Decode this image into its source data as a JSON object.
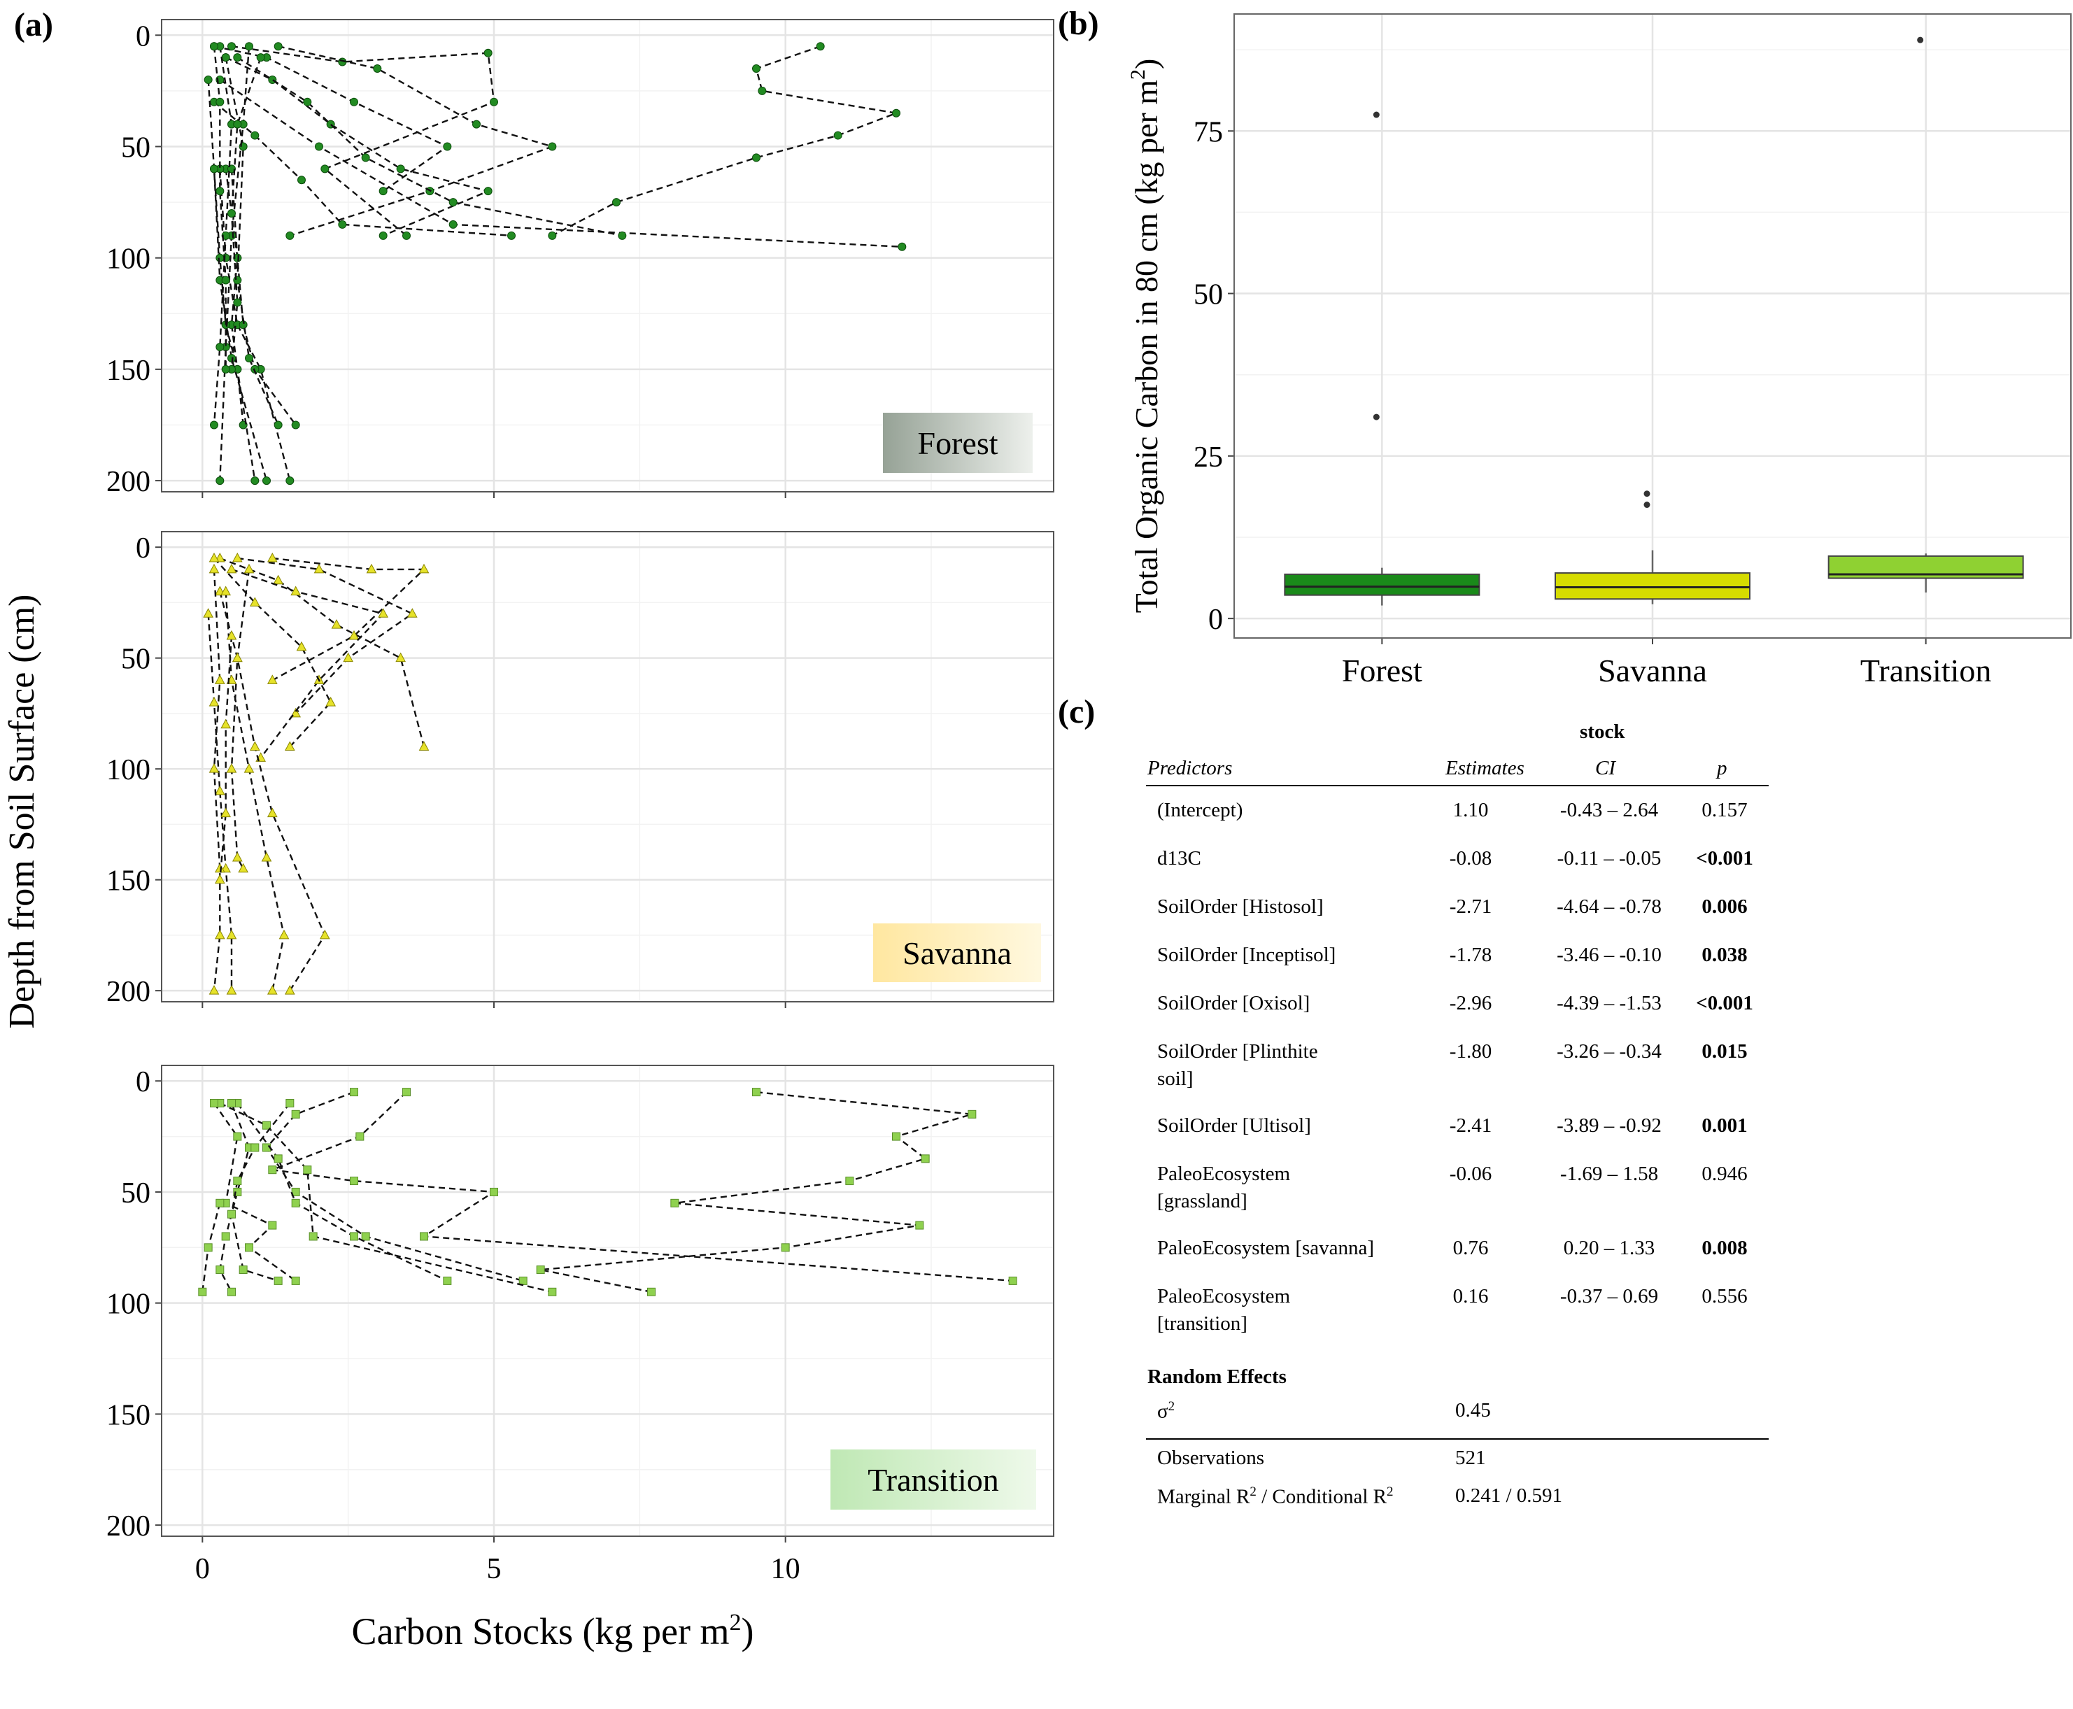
{
  "panel_labels": {
    "a": "(a)",
    "b": "(b)",
    "c": "(c)"
  },
  "colors": {
    "forest": "#1a8a1a",
    "savanna": "#d6dc00",
    "transition": "#8fd132",
    "forest_point": "#228b22",
    "savanna_point": "#e6e22a",
    "transition_point": "#8fd14f",
    "forest_label_bg": "#a9b3a9",
    "savanna_label_bg": "#ffe9a6",
    "transition_label_bg": "#c9ecc0"
  },
  "chart_data": [
    {
      "type": "line",
      "panel": "a",
      "facet": "Forest",
      "ylabel": "Depth from Soil Surface (cm)",
      "xlabel": "Carbon Stocks (kg per m2)",
      "xlim": [
        -0.7,
        14.6
      ],
      "ylim": [
        205,
        -7
      ],
      "y_reversed": true,
      "xticks": [
        0,
        5,
        10
      ],
      "yticks": [
        0,
        50,
        100,
        150,
        200
      ],
      "grid": true,
      "series": [
        {
          "x": [
            0.2,
            1.1,
            2.6,
            4.2,
            3.1
          ],
          "y": [
            5,
            10,
            30,
            50,
            70
          ]
        },
        {
          "x": [
            0.5,
            2.4,
            4.9,
            5.0,
            2.1,
            3.5
          ],
          "y": [
            5,
            12,
            8,
            30,
            60,
            90
          ]
        },
        {
          "x": [
            1.3,
            3.0,
            4.7,
            6.0,
            3.9,
            1.5
          ],
          "y": [
            5,
            15,
            40,
            50,
            70,
            90
          ]
        },
        {
          "x": [
            10.6,
            9.5,
            9.6,
            11.9,
            10.9,
            9.5,
            7.1,
            6.0
          ],
          "y": [
            5,
            15,
            25,
            35,
            45,
            55,
            75,
            90
          ]
        },
        {
          "x": [
            0.4,
            1.2,
            2.2,
            3.4,
            4.9,
            3.1
          ],
          "y": [
            10,
            20,
            40,
            60,
            70,
            90
          ]
        },
        {
          "x": [
            0.3,
            2.0,
            4.3,
            12.0
          ],
          "y": [
            20,
            50,
            85,
            95
          ]
        },
        {
          "x": [
            0.6,
            1.8,
            2.8,
            4.3,
            7.2
          ],
          "y": [
            10,
            30,
            55,
            75,
            90
          ]
        },
        {
          "x": [
            0.2,
            0.9,
            1.7,
            2.4,
            5.3
          ],
          "y": [
            30,
            45,
            65,
            85,
            90
          ]
        },
        {
          "x": [
            0.4,
            0.6,
            0.5,
            0.6,
            0.7
          ],
          "y": [
            60,
            100,
            130,
            150,
            175
          ]
        },
        {
          "x": [
            0.3,
            0.4,
            0.6,
            1.0,
            1.5
          ],
          "y": [
            60,
            100,
            130,
            150,
            200
          ]
        },
        {
          "x": [
            0.2,
            0.3,
            0.4,
            0.6,
            0.9
          ],
          "y": [
            60,
            100,
            130,
            150,
            200
          ]
        },
        {
          "x": [
            0.5,
            0.6,
            0.7,
            0.9,
            1.6
          ],
          "y": [
            60,
            100,
            130,
            150,
            175
          ]
        },
        {
          "x": [
            0.1,
            0.2,
            0.3,
            0.5,
            1.1
          ],
          "y": [
            20,
            60,
            110,
            145,
            200
          ]
        },
        {
          "x": [
            0.4,
            0.7,
            0.6,
            0.8,
            1.3
          ],
          "y": [
            10,
            50,
            110,
            145,
            175
          ]
        },
        {
          "x": [
            0.8,
            0.7,
            0.5,
            0.4,
            0.3
          ],
          "y": [
            5,
            40,
            90,
            140,
            200
          ]
        },
        {
          "x": [
            0.3,
            0.5,
            0.4,
            0.3,
            0.2
          ],
          "y": [
            5,
            40,
            90,
            140,
            175
          ]
        },
        {
          "x": [
            1.0,
            0.6,
            0.5,
            0.6,
            0.5
          ],
          "y": [
            10,
            40,
            80,
            120,
            150
          ]
        },
        {
          "x": [
            0.2,
            0.3,
            0.3,
            0.4,
            0.4
          ],
          "y": [
            5,
            30,
            70,
            110,
            150
          ]
        }
      ]
    },
    {
      "type": "line",
      "panel": "a",
      "facet": "Savanna",
      "xlim": [
        -0.7,
        14.6
      ],
      "ylim": [
        205,
        -7
      ],
      "y_reversed": true,
      "xticks": [
        0,
        5,
        10
      ],
      "yticks": [
        0,
        50,
        100,
        150,
        200
      ],
      "grid": true,
      "series": [
        {
          "x": [
            0.3,
            1.3,
            2.3,
            3.4,
            3.8
          ],
          "y": [
            5,
            15,
            35,
            50,
            90
          ]
        },
        {
          "x": [
            0.6,
            2.0,
            3.6,
            2.5,
            1.6
          ],
          "y": [
            5,
            10,
            30,
            50,
            75
          ]
        },
        {
          "x": [
            1.2,
            2.9,
            3.8,
            2.6,
            1.2
          ],
          "y": [
            5,
            10,
            10,
            40,
            60
          ]
        },
        {
          "x": [
            0.5,
            1.6,
            3.1,
            2.0,
            1.0
          ],
          "y": [
            10,
            20,
            30,
            60,
            95
          ]
        },
        {
          "x": [
            0.2,
            0.9,
            1.7,
            2.2,
            1.5
          ],
          "y": [
            5,
            25,
            45,
            70,
            90
          ]
        },
        {
          "x": [
            0.3,
            0.6,
            0.9,
            1.2,
            2.1,
            1.5
          ],
          "y": [
            20,
            50,
            90,
            120,
            175,
            200
          ]
        },
        {
          "x": [
            0.4,
            0.5,
            0.8,
            1.1,
            1.4,
            1.2
          ],
          "y": [
            20,
            60,
            100,
            140,
            175,
            200
          ]
        },
        {
          "x": [
            0.1,
            0.2,
            0.3,
            0.4,
            0.5,
            0.5
          ],
          "y": [
            30,
            70,
            110,
            145,
            175,
            200
          ]
        },
        {
          "x": [
            0.2,
            0.3,
            0.2,
            0.3,
            0.3,
            0.2
          ],
          "y": [
            10,
            60,
            100,
            145,
            175,
            200
          ]
        },
        {
          "x": [
            0.8,
            0.6,
            0.5,
            0.6,
            0.7
          ],
          "y": [
            10,
            50,
            100,
            140,
            145
          ]
        },
        {
          "x": [
            0.5,
            0.4,
            0.4,
            0.3
          ],
          "y": [
            40,
            80,
            120,
            150
          ]
        }
      ]
    },
    {
      "type": "line",
      "panel": "a",
      "facet": "Transition",
      "xlim": [
        -0.7,
        14.6
      ],
      "ylim": [
        205,
        -7
      ],
      "y_reversed": true,
      "xticks": [
        0,
        5,
        10
      ],
      "yticks": [
        0,
        50,
        100,
        150,
        200
      ],
      "grid": true,
      "series": [
        {
          "x": [
            9.5,
            13.2,
            11.9,
            12.4,
            11.1,
            8.1,
            12.3,
            10.0,
            5.8,
            7.7
          ],
          "y": [
            5,
            15,
            25,
            35,
            45,
            55,
            65,
            75,
            85,
            95
          ]
        },
        {
          "x": [
            3.5,
            2.7,
            1.2,
            2.6,
            5.0,
            3.8,
            13.9
          ],
          "y": [
            5,
            25,
            40,
            45,
            50,
            70,
            90
          ]
        },
        {
          "x": [
            2.6,
            1.6,
            1.1,
            1.6,
            2.8,
            5.5
          ],
          "y": [
            5,
            15,
            30,
            50,
            70,
            90
          ]
        },
        {
          "x": [
            0.3,
            1.1,
            1.8,
            1.9,
            6.0
          ],
          "y": [
            10,
            20,
            40,
            70,
            95
          ]
        },
        {
          "x": [
            0.6,
            1.3,
            1.6,
            2.6,
            4.2
          ],
          "y": [
            10,
            35,
            55,
            70,
            90
          ]
        },
        {
          "x": [
            0.5,
            0.8,
            0.6,
            0.4,
            0.3,
            0.5
          ],
          "y": [
            10,
            30,
            50,
            70,
            85,
            95
          ]
        },
        {
          "x": [
            0.2,
            0.6,
            0.4,
            1.2,
            0.8,
            1.6
          ],
          "y": [
            10,
            25,
            55,
            65,
            75,
            90
          ]
        },
        {
          "x": [
            1.5,
            0.9,
            0.6,
            0.5,
            0.7,
            1.3
          ],
          "y": [
            10,
            30,
            45,
            60,
            85,
            90
          ]
        },
        {
          "x": [
            0.3,
            0.1,
            0.0
          ],
          "y": [
            55,
            75,
            95
          ]
        }
      ]
    },
    {
      "type": "box",
      "panel": "b",
      "ylabel": "Total Organic Carbon in 80 cm (kg per m2)",
      "categories": [
        "Forest",
        "Savanna",
        "Transition"
      ],
      "ylim": [
        -3,
        93
      ],
      "yticks": [
        0,
        25,
        50,
        75
      ],
      "grid": true,
      "boxes": [
        {
          "min": 2.0,
          "q1": 3.6,
          "median": 4.9,
          "q3": 6.8,
          "max": 7.8,
          "outliers": [
            77.5,
            31.0
          ]
        },
        {
          "min": 2.2,
          "q1": 3.0,
          "median": 4.8,
          "q3": 7.0,
          "max": 10.5,
          "outliers": [
            19.2,
            17.5
          ]
        },
        {
          "min": 4.0,
          "q1": 6.2,
          "median": 6.8,
          "q3": 9.6,
          "max": 10.0,
          "outliers": [
            89.0
          ]
        }
      ]
    }
  ],
  "axis_text": {
    "a_ylabel": "Depth from Soil Surface (cm)",
    "a_xlabel": "Carbon Stocks (kg per m",
    "a_xlabel_sup": "2",
    "a_xlabel_end": ")",
    "b_ylabel": "Total Organic Carbon in 80 cm (kg per m",
    "b_ylabel_sup": "2",
    "b_ylabel_end": ")"
  },
  "regression_table": {
    "dependent": "stock",
    "headers": {
      "predictors": "Predictors",
      "estimates": "Estimates",
      "ci": "CI",
      "p": "p"
    },
    "rows": [
      {
        "line1": "(Intercept)",
        "line2": "",
        "est": "1.10",
        "ci": "-0.43 – 2.64",
        "p": "0.157",
        "sig": false
      },
      {
        "line1": "d13C",
        "line2": "",
        "est": "-0.08",
        "ci": "-0.11 – -0.05",
        "p": "<0.001",
        "sig": true
      },
      {
        "line1": "SoilOrder [Histosol]",
        "line2": "",
        "est": "-2.71",
        "ci": "-4.64 – -0.78",
        "p": "0.006",
        "sig": true
      },
      {
        "line1": "SoilOrder [Inceptisol]",
        "line2": "",
        "est": "-1.78",
        "ci": "-3.46 – -0.10",
        "p": "0.038",
        "sig": true
      },
      {
        "line1": "SoilOrder [Oxisol]",
        "line2": "",
        "est": "-2.96",
        "ci": "-4.39 – -1.53",
        "p": "<0.001",
        "sig": true
      },
      {
        "line1": "SoilOrder [Plinthite",
        "line2": "soil]",
        "est": "-1.80",
        "ci": "-3.26 – -0.34",
        "p": "0.015",
        "sig": true
      },
      {
        "line1": "SoilOrder [Ultisol]",
        "line2": "",
        "est": "-2.41",
        "ci": "-3.89 – -0.92",
        "p": "0.001",
        "sig": true
      },
      {
        "line1": "PaleoEcosystem",
        "line2": "[grassland]",
        "est": "-0.06",
        "ci": "-1.69 – 1.58",
        "p": "0.946",
        "sig": false
      },
      {
        "line1": "PaleoEcosystem [savanna]",
        "line2": "",
        "est": "0.76",
        "ci": "0.20 – 1.33",
        "p": "0.008",
        "sig": true
      },
      {
        "line1": "PaleoEcosystem",
        "line2": "[transition]",
        "est": "0.16",
        "ci": "-0.37 – 0.69",
        "p": "0.556",
        "sig": false
      }
    ],
    "random_effects_label": "Random Effects",
    "sigma_label": "σ",
    "sigma_sup": "2",
    "sigma_value": "0.45",
    "observations_label": "Observations",
    "observations_value": "521",
    "r2_label_a": "Marginal R",
    "r2_label_b": " / Conditional R",
    "r2_sup": "2",
    "r2_value": "0.241 / 0.591"
  }
}
